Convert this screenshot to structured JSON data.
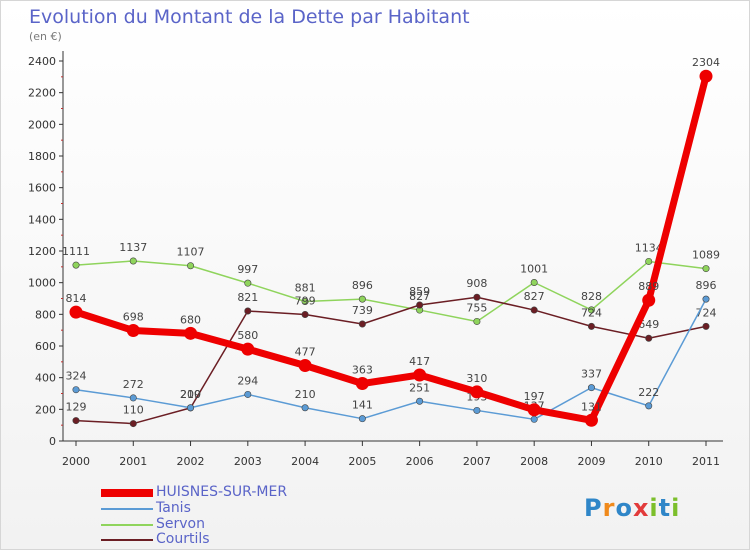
{
  "header": {
    "title": "Evolution du Montant de la Dette par Habitant",
    "subtitle": "(en €)"
  },
  "chart_data": {
    "type": "line",
    "x": [
      "2000",
      "2001",
      "2002",
      "2003",
      "2004",
      "2005",
      "2006",
      "2007",
      "2008",
      "2009",
      "2010",
      "2011"
    ],
    "ylim": [
      0,
      2400
    ],
    "yticks": [
      0,
      200,
      400,
      600,
      800,
      1000,
      1200,
      1400,
      1600,
      1800,
      2000,
      2200,
      2400
    ],
    "grid": false,
    "legend": "bottom-left",
    "series": [
      {
        "name": "HUISNES-SUR-MER",
        "color": "#ee0000",
        "values": [
          814,
          698,
          680,
          580,
          477,
          363,
          417,
          310,
          197,
          131,
          889,
          2304
        ]
      },
      {
        "name": "Tanis",
        "color": "#5b9bd5",
        "values": [
          324,
          272,
          210,
          294,
          210,
          141,
          251,
          193,
          137,
          337,
          222,
          896
        ]
      },
      {
        "name": "Servon",
        "color": "#8fd45c",
        "values": [
          1111,
          1137,
          1107,
          997,
          881,
          896,
          827,
          755,
          1001,
          828,
          1134,
          1089
        ]
      },
      {
        "name": "Courtils",
        "color": "#6b1e24",
        "values": [
          129,
          110,
          209,
          821,
          799,
          739,
          859,
          908,
          827,
          724,
          649,
          724
        ]
      }
    ]
  },
  "logo": {
    "letters": [
      {
        "ch": "P",
        "color": "#2f86c8"
      },
      {
        "ch": "r",
        "color": "#f08a1c"
      },
      {
        "ch": "o",
        "color": "#2f86c8"
      },
      {
        "ch": "x",
        "color": "#e23b3b"
      },
      {
        "ch": "i",
        "color": "#7cbf2c"
      },
      {
        "ch": "t",
        "color": "#2f86c8"
      },
      {
        "ch": "i",
        "color": "#7cbf2c"
      }
    ]
  }
}
